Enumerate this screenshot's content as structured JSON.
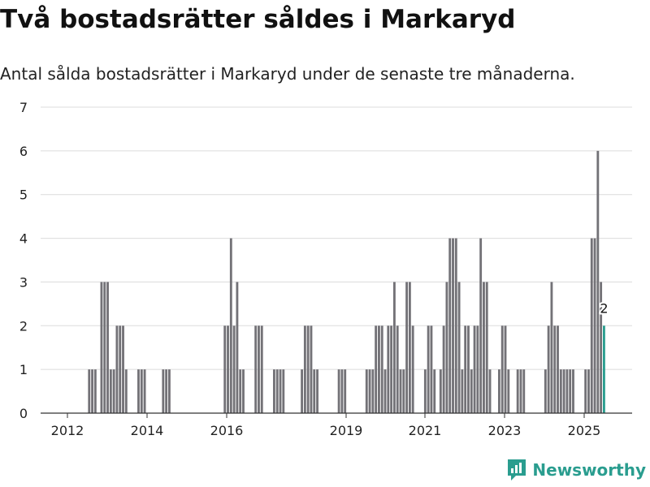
{
  "title": "Två bostadsrätter såldes i Markaryd",
  "subtitle": "Antal sålda bostadsrätter i Markaryd under de senaste tre månaderna.",
  "brand": {
    "name": "Newsworthy",
    "icon": "newsworthy-logo-icon",
    "color": "#2a9d8f"
  },
  "chart_data": {
    "type": "bar",
    "title": "Två bostadsrätter såldes i Markaryd",
    "subtitle": "Antal sålda bostadsrätter i Markaryd under de senaste tre månaderna.",
    "xlabel": "",
    "ylabel": "",
    "ylim": [
      0,
      7
    ],
    "yticks": [
      0,
      1,
      2,
      3,
      4,
      5,
      6,
      7
    ],
    "xticks": [
      "2012",
      "2014",
      "2016",
      "2019",
      "2021",
      "2023",
      "2025"
    ],
    "grid": true,
    "colors": {
      "bar": "#737277",
      "highlight": "#2a9d8f"
    },
    "highlight_label": "2",
    "series": [
      {
        "values": [
          0,
          0,
          0,
          0,
          0,
          0,
          0,
          0,
          1,
          1,
          1,
          0,
          3,
          3,
          3,
          1,
          1,
          2,
          2,
          2,
          1,
          0,
          0,
          0,
          1,
          1,
          1,
          0,
          0,
          0,
          0,
          0,
          1,
          1,
          1,
          0,
          0,
          0,
          0,
          0,
          0,
          0,
          0,
          0,
          0,
          0,
          0,
          0,
          0,
          0,
          0,
          0,
          2,
          2,
          4,
          2,
          3,
          1,
          1,
          0,
          0,
          0,
          2,
          2,
          2,
          0,
          0,
          0,
          1,
          1,
          1,
          1,
          0,
          0,
          0,
          0,
          0,
          1,
          2,
          2,
          2,
          1,
          1,
          0,
          0,
          0,
          0,
          0,
          0,
          1,
          1,
          1,
          0,
          0,
          0,
          0,
          0,
          0,
          1,
          1,
          1,
          2,
          2,
          2,
          1,
          2,
          2,
          3,
          2,
          1,
          1,
          3,
          3,
          2,
          0,
          0,
          0,
          1,
          2,
          2,
          1,
          0,
          1,
          2,
          3,
          4,
          4,
          4,
          3,
          1,
          2,
          2,
          1,
          2,
          2,
          4,
          3,
          3,
          1,
          0,
          0,
          1,
          2,
          2,
          1,
          0,
          0,
          1,
          1,
          1,
          0,
          0,
          0,
          0,
          0,
          0,
          1,
          2,
          3,
          2,
          2,
          1,
          1,
          1,
          1,
          1,
          0,
          0,
          0,
          1,
          1,
          4,
          4,
          6,
          3,
          2
        ]
      }
    ]
  }
}
